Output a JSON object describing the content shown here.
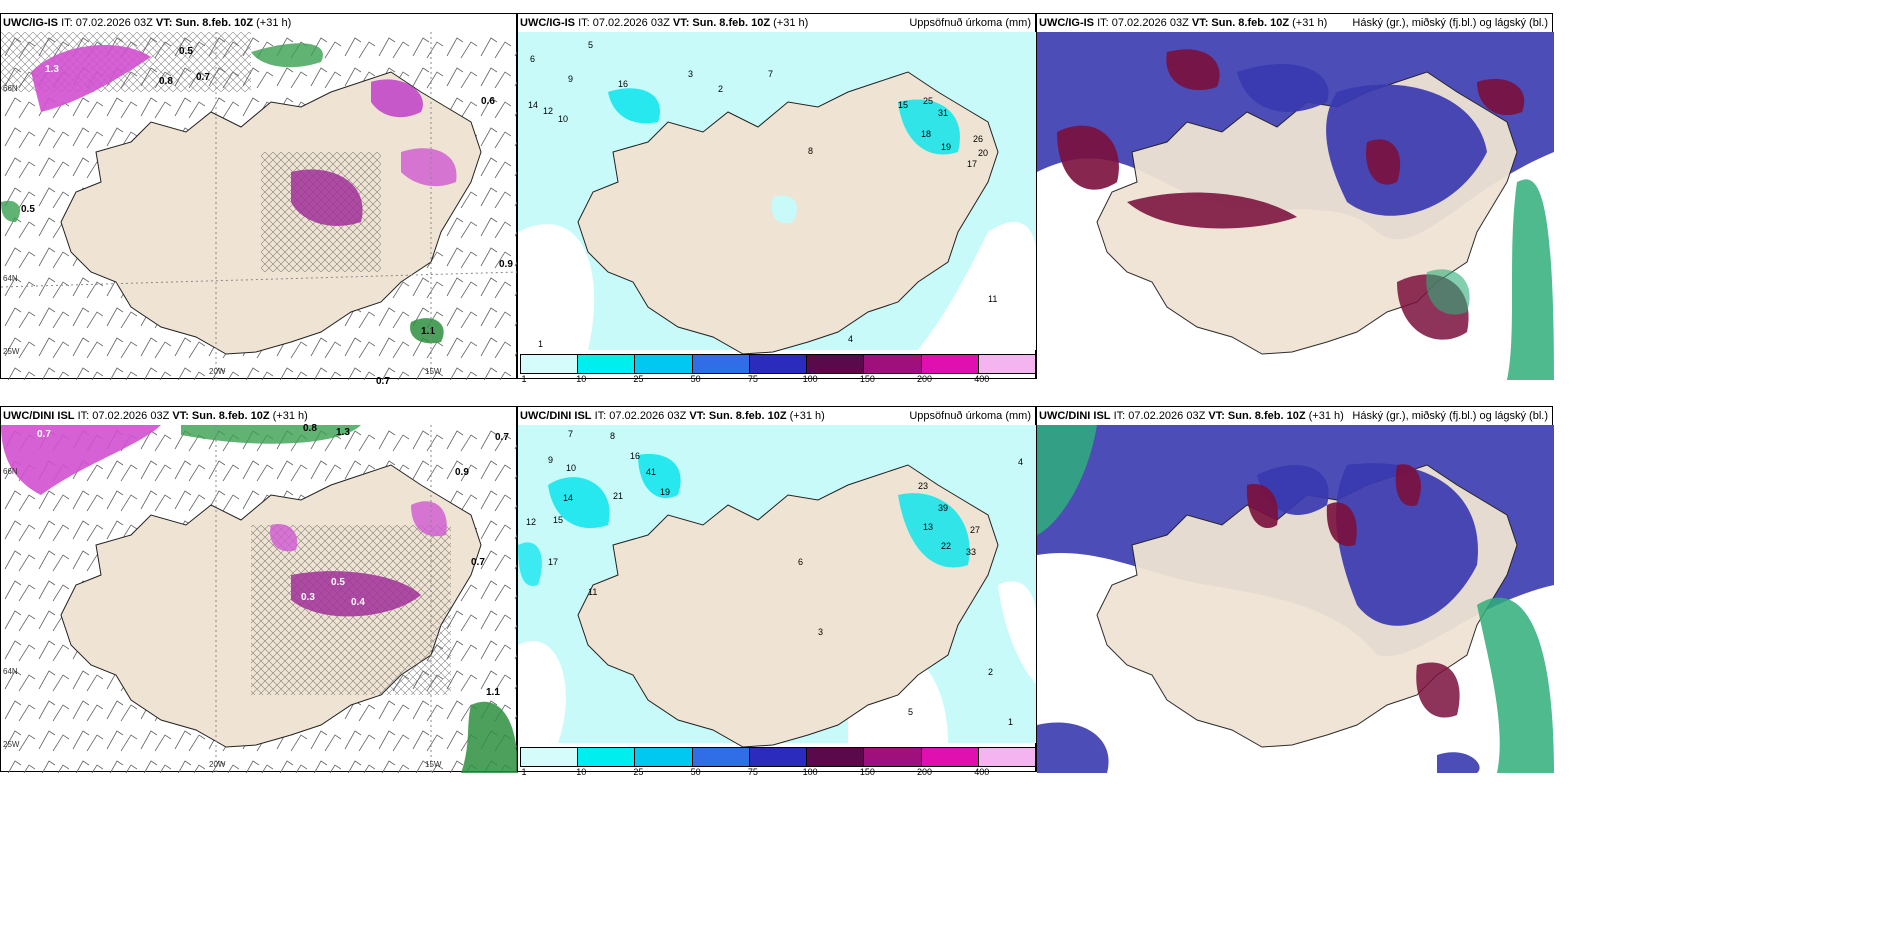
{
  "panels": [
    {
      "model": "UWC/IG-IS",
      "meta": "IT: 07.02.2026 03Z",
      "vt_label": "VT: Sun. 8.feb. 10Z",
      "lead": "(+31 h)",
      "product_title": "",
      "coord_labels": [
        "20W",
        "15W",
        "25W",
        "66N",
        "64N"
      ]
    },
    {
      "model": "UWC/IG-IS",
      "meta": "IT: 07.02.2026 03Z",
      "vt_label": "VT: Sun. 8.feb. 10Z",
      "lead": "(+31 h)",
      "product_title": "Uppsöfnuð úrkoma (mm)",
      "precip_values": [
        "5",
        "6",
        "9",
        "10",
        "12",
        "14",
        "16",
        "3",
        "7",
        "2",
        "1",
        "25",
        "31",
        "18",
        "19",
        "26",
        "20",
        "11",
        "17",
        "15",
        "8",
        "4"
      ]
    },
    {
      "model": "UWC/IG-IS",
      "meta": "IT: 07.02.2026 03Z",
      "vt_label": "VT: Sun. 8.feb. 10Z",
      "lead": "(+31 h)",
      "product_title": "Háský (gr.), miðský (fj.bl.) og lágský (bl.)"
    },
    {
      "model": "UWC/DINI ISL",
      "meta": "IT: 07.02.2026 03Z",
      "vt_label": "VT: Sun. 8.feb. 10Z",
      "lead": "(+31 h)",
      "product_title": "",
      "coord_labels": [
        "20W",
        "15W",
        "25W",
        "66N",
        "64N"
      ]
    },
    {
      "model": "UWC/DINI ISL",
      "meta": "IT: 07.02.2026 03Z",
      "vt_label": "VT: Sun. 8.feb. 10Z",
      "lead": "(+31 h)",
      "product_title": "Uppsöfnuð úrkoma (mm)",
      "precip_values": [
        "7",
        "8",
        "9",
        "10",
        "12",
        "14",
        "15",
        "16",
        "21",
        "41",
        "19",
        "23",
        "39",
        "27",
        "33",
        "22",
        "13",
        "17",
        "11",
        "5",
        "3",
        "6",
        "4",
        "2",
        "1"
      ]
    },
    {
      "model": "UWC/DINI ISL",
      "meta": "IT: 07.02.2026 03Z",
      "vt_label": "VT: Sun. 8.feb. 10Z",
      "lead": "(+31 h)",
      "product_title": "Háský (gr.), miðský (fj.bl.) og lágský (bl.)"
    }
  ],
  "snow_labels_top": [
    "0.5",
    "0.7",
    "0.8",
    "0.6",
    "1.1",
    "0.9",
    "1.3"
  ],
  "snow_labels_bottom": [
    "0.7",
    "0.8",
    "0.9",
    "1.1",
    "1.3",
    "0.3",
    "0.4",
    "0.5"
  ],
  "colorbar": {
    "labels": [
      "1",
      "10",
      "25",
      "50",
      "75",
      "100",
      "150",
      "200",
      "400"
    ],
    "colors": [
      "#d6fbfb",
      "#00eeee",
      "#00c8f0",
      "#2f6ee6",
      "#2b2bbd",
      "#5a0a4a",
      "#a0107c",
      "#e010b0",
      "#f4b4f0"
    ]
  },
  "colors": {
    "land": "#efe3d3",
    "precip_light": "#c8fafa",
    "precip_mid": "#00e4ec",
    "cloud_high": "#7a0f3c",
    "cloud_mid": "#3a3ab0",
    "cloud_low": "#2fae7a",
    "snow_pink": "#d050d0",
    "snow_green": "#3aa050"
  }
}
